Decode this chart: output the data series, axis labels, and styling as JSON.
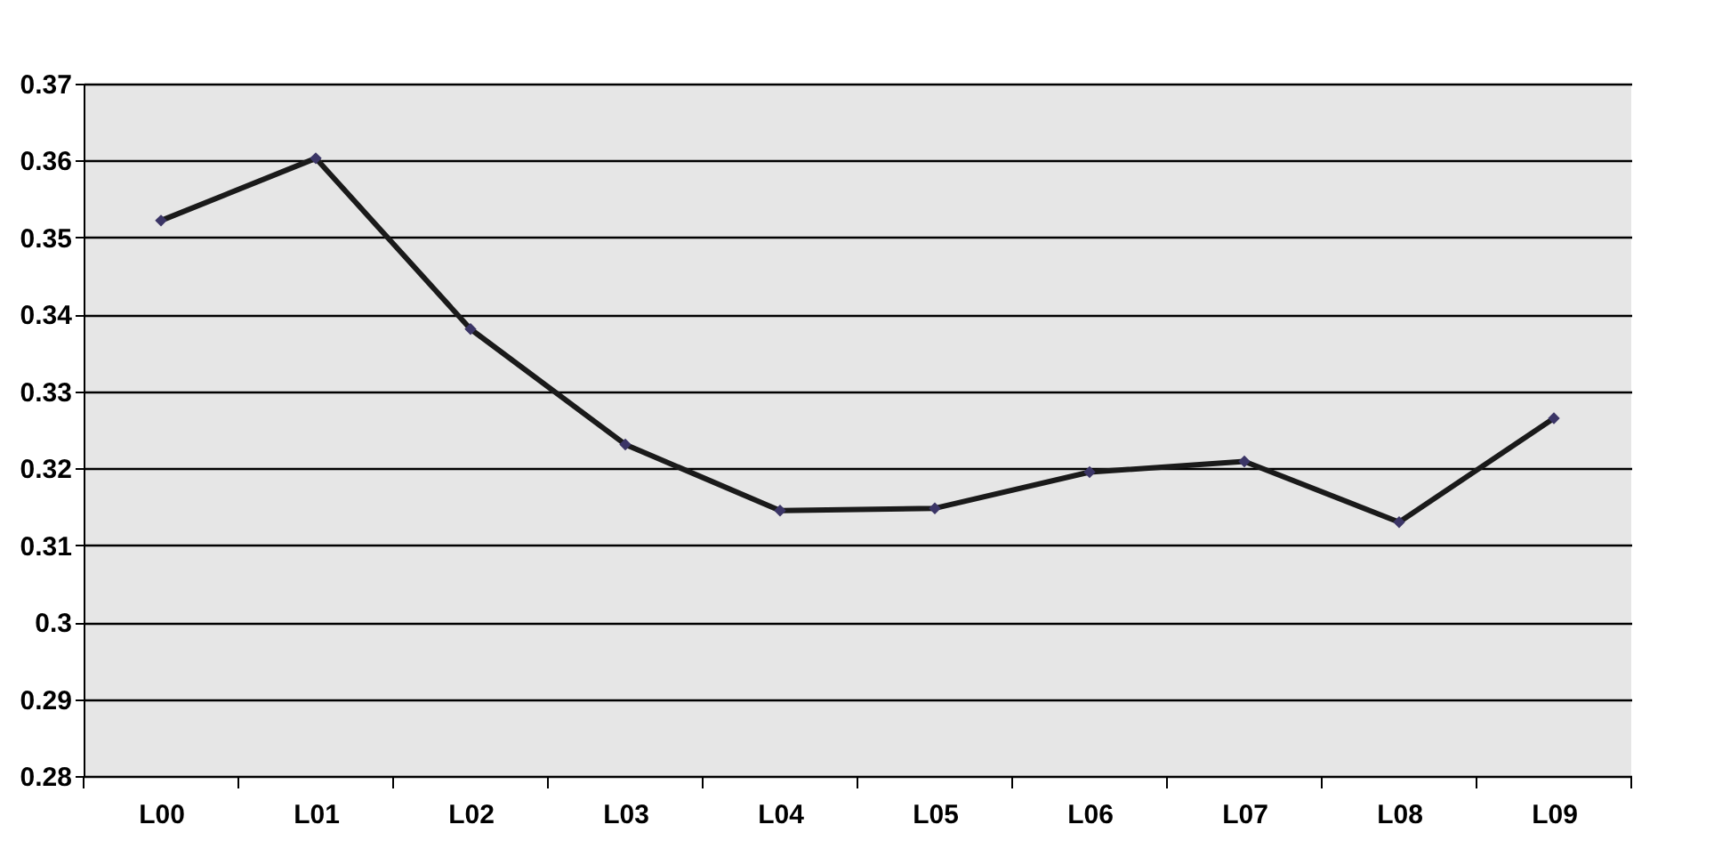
{
  "chart_data": {
    "type": "line",
    "categories": [
      "L00",
      "L01",
      "L02",
      "L03",
      "L04",
      "L05",
      "L06",
      "L07",
      "L08",
      "L09"
    ],
    "series": [
      {
        "color": "#1a1a1a",
        "values": [
          0.3522,
          0.3603,
          0.3381,
          0.3231,
          0.3145,
          0.3148,
          0.3195,
          0.3209,
          0.313,
          0.3265
        ]
      }
    ],
    "ylim": [
      0.28,
      0.37
    ],
    "yticks": [
      0.28,
      0.29,
      0.3,
      0.31,
      0.32,
      0.33,
      0.34,
      0.35,
      0.36,
      0.37
    ],
    "grid": "y",
    "marker": "diamond",
    "line_style": "solid",
    "legend": false
  }
}
